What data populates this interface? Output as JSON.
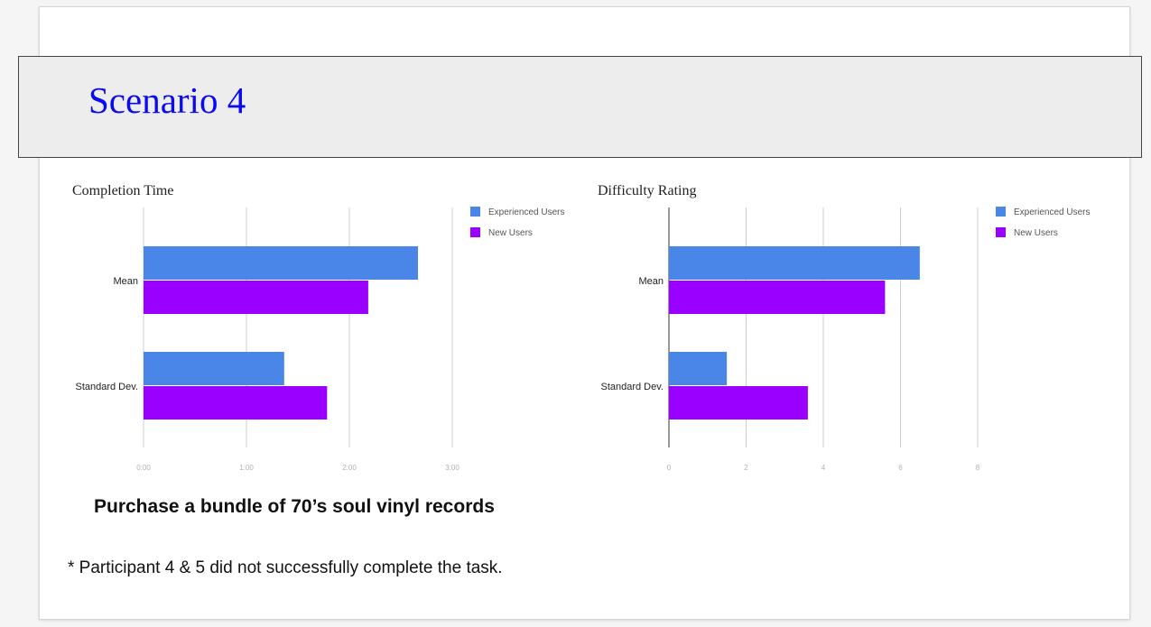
{
  "slide": {
    "title": "Scenario 4",
    "subtitle": "Purchase a bundle of 70’s soul vinyl records",
    "footnote": "* Participant 4 & 5 did not successfully complete the task."
  },
  "colors": {
    "experienced": "#4a86e8",
    "new": "#9900ff",
    "title": "#0a0af0"
  },
  "chart_data": [
    {
      "type": "bar",
      "orientation": "horizontal",
      "title": "Completion Time",
      "categories": [
        "Mean",
        "Standard Dev."
      ],
      "series": [
        {
          "name": "Experienced Users",
          "values": [
            160,
            82
          ]
        },
        {
          "name": "New Users",
          "values": [
            131,
            107
          ]
        }
      ],
      "x_unit": "seconds",
      "xlim": [
        0,
        180
      ],
      "ticks": [
        0,
        60,
        120,
        180
      ],
      "tick_labels": [
        "0:00",
        "1:00",
        "2:00",
        "3:00"
      ],
      "grid": true,
      "legend": "right"
    },
    {
      "type": "bar",
      "orientation": "horizontal",
      "title": "Difficulty Rating",
      "categories": [
        "Mean",
        "Standard Dev."
      ],
      "series": [
        {
          "name": "Experienced Users",
          "values": [
            6.5,
            1.5
          ]
        },
        {
          "name": "New Users",
          "values": [
            5.6,
            3.6
          ]
        }
      ],
      "xlim": [
        0,
        8
      ],
      "ticks": [
        0,
        2,
        4,
        6,
        8
      ],
      "tick_labels": [
        "0",
        "2",
        "4",
        "6",
        "8"
      ],
      "grid": true,
      "legend": "right"
    }
  ]
}
